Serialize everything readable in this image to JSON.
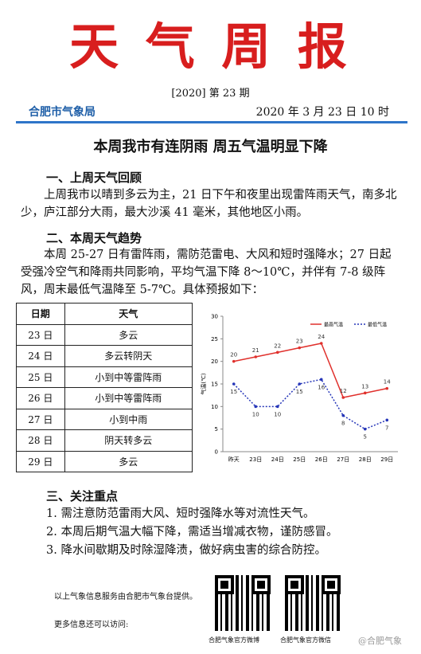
{
  "header": {
    "title": "天 气 周 报",
    "issue": "[2020]  第 23 期",
    "agency": "合肥市气象局",
    "date": "2020 年 3 月 23 日 10 时"
  },
  "headline": "本周我市有连阴雨  周五气温明显下降",
  "sections": [
    {
      "heading": "一、上周天气回顾",
      "text": "上周我市以晴到多云为主，21 日下午和夜里出现雷阵雨天气，南多北少，庐江部分大雨，最大沙溪 41 毫米，其他地区小雨。"
    },
    {
      "heading": "二、本周天气趋势",
      "text": "本周 25-27 日有雷阵雨，需防范雷电、大风和短时强降水；27 日起受强冷空气和降雨共同影响，平均气温下降 8～10℃，并伴有 7-8 级阵风，周末最低气温降至 5-7℃。具体预报如下："
    },
    {
      "heading": "三、关注重点",
      "items": [
        "1. 需注意防范雷雨大风、短时强降水等对流性天气。",
        "2. 本周后期气温大幅下降，需适当增减衣物，谨防感冒。",
        "3. 降水间歇期及时除湿降渍，做好病虫害的综合防控。"
      ]
    }
  ],
  "table": {
    "header": [
      "日期",
      "天气"
    ],
    "rows": [
      [
        "23 日",
        "多云"
      ],
      [
        "24 日",
        "多云转阴天"
      ],
      [
        "25 日",
        "小到中等雷阵雨"
      ],
      [
        "26 日",
        "小到中等雷阵雨"
      ],
      [
        "27 日",
        "小到中雨"
      ],
      [
        "28 日",
        "阴天转多云"
      ],
      [
        "29 日",
        "多云"
      ]
    ]
  },
  "chart_data": {
    "type": "line",
    "y_label": "气温(℃)",
    "categories": [
      "昨天",
      "23日",
      "24日",
      "25日",
      "26日",
      "27日",
      "28日",
      "29日"
    ],
    "series": [
      {
        "name": "最高气温",
        "color": "#e0302c",
        "style": "solid",
        "values": [
          20,
          21,
          22,
          23,
          24,
          12,
          13,
          14
        ]
      },
      {
        "name": "最低气温",
        "color": "#2535b8",
        "style": "dotted",
        "values": [
          15,
          10,
          10,
          15,
          16,
          8,
          5,
          7
        ]
      }
    ],
    "ylim": [
      0,
      30
    ],
    "yticks": [
      0,
      5,
      10,
      15,
      20,
      25,
      30
    ],
    "grid": false
  },
  "footer": {
    "provider": "以上气象信息服务由合肥市气象台提供。",
    "more": "更多信息还可以访问:",
    "qr_captions": [
      "合肥气象官方微博",
      "合肥气象官方微信"
    ],
    "watermark": "@合肥气象"
  }
}
